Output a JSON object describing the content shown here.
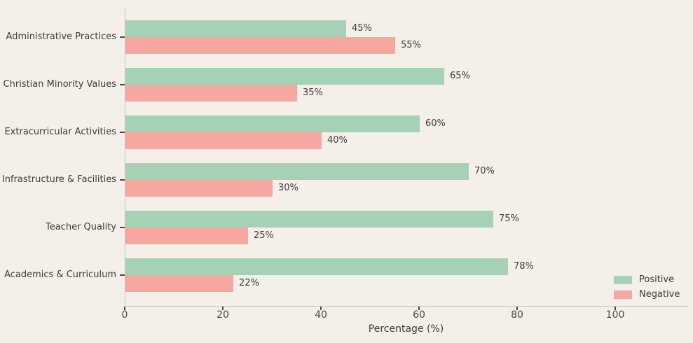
{
  "chart_data": {
    "type": "bar",
    "orientation": "horizontal",
    "categories": [
      "Administrative Practices",
      "Christian Minority Values",
      "Extracurricular Activities",
      "Infrastructure & Facilities",
      "Teacher Quality",
      "Academics & Curriculum"
    ],
    "series": [
      {
        "name": "Positive",
        "color": "#a5d1b4",
        "values": [
          45,
          65,
          60,
          70,
          75,
          78
        ]
      },
      {
        "name": "Negative",
        "color": "#f6a8a0",
        "values": [
          55,
          35,
          40,
          30,
          25,
          22
        ]
      }
    ],
    "value_label_suffix": "%",
    "xlabel": "Percentage (%)",
    "x_ticks": [
      0,
      20,
      40,
      60,
      80,
      100
    ],
    "xlim": [
      0,
      114.7
    ],
    "grid": false,
    "legend": {
      "position": "lower-right",
      "entries": [
        "Positive",
        "Negative"
      ]
    }
  },
  "colors": {
    "background": "#f4efe9",
    "spine": "#c9c4be",
    "tick": "#4a4a4a",
    "text": "#3c3c3c"
  }
}
